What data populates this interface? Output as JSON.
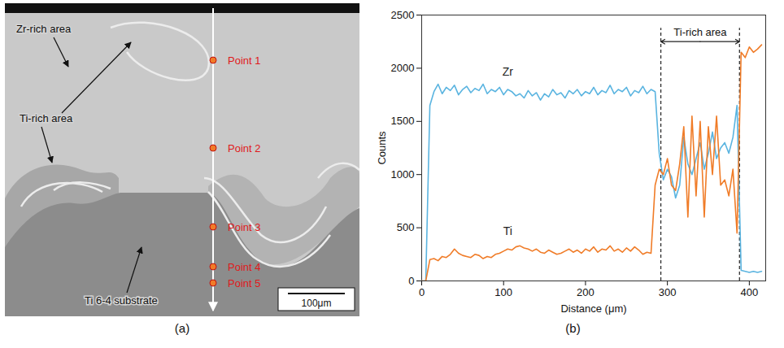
{
  "micrograph": {
    "panel_label": "(a)",
    "labels": {
      "zr_rich": "Zr-rich area",
      "ti_rich": "Ti-rich area",
      "substrate": "Ti 6-4 substrate"
    },
    "points": [
      "Point 1",
      "Point 2",
      "Point 3",
      "Point 4",
      "Point 5"
    ],
    "scale_bar": "100μm"
  },
  "chart_data": {
    "type": "line",
    "panel_label": "(b)",
    "x_label": "Distance (μm)",
    "y_label": "Counts",
    "x": [
      0,
      5,
      10,
      15,
      20,
      25,
      30,
      35,
      40,
      45,
      50,
      55,
      60,
      65,
      70,
      75,
      80,
      85,
      90,
      95,
      100,
      105,
      110,
      115,
      120,
      125,
      130,
      135,
      140,
      145,
      150,
      155,
      160,
      165,
      170,
      175,
      180,
      185,
      190,
      195,
      200,
      205,
      210,
      215,
      220,
      225,
      230,
      235,
      240,
      245,
      250,
      255,
      260,
      265,
      270,
      275,
      280,
      285,
      290,
      295,
      300,
      305,
      310,
      315,
      320,
      325,
      330,
      335,
      340,
      345,
      350,
      355,
      360,
      365,
      370,
      375,
      380,
      385,
      390,
      395,
      400,
      405,
      410,
      415
    ],
    "series": [
      {
        "name": "Zr",
        "color": "#5ab4e0",
        "values": [
          0,
          0,
          1650,
          1780,
          1850,
          1760,
          1820,
          1790,
          1840,
          1750,
          1800,
          1830,
          1770,
          1810,
          1790,
          1850,
          1760,
          1800,
          1780,
          1820,
          1750,
          1800,
          1780,
          1740,
          1760,
          1720,
          1790,
          1740,
          1770,
          1700,
          1760,
          1730,
          1800,
          1750,
          1770,
          1720,
          1790,
          1760,
          1800,
          1740,
          1780,
          1760,
          1820,
          1750,
          1790,
          1770,
          1840,
          1760,
          1800,
          1780,
          1820,
          1740,
          1790,
          1770,
          1830,
          1760,
          1800,
          1780,
          1200,
          950,
          1050,
          980,
          780,
          900,
          1350,
          1100,
          1000,
          1150,
          1300,
          1050,
          1200,
          1400,
          1150,
          1250,
          1300,
          1200,
          1350,
          1650,
          100,
          90,
          80,
          90,
          80,
          90
        ]
      },
      {
        "name": "Ti",
        "color": "#f07c28",
        "values": [
          0,
          0,
          200,
          210,
          190,
          230,
          220,
          250,
          300,
          260,
          240,
          230,
          220,
          250,
          240,
          210,
          230,
          220,
          250,
          260,
          280,
          300,
          290,
          320,
          330,
          310,
          300,
          280,
          300,
          270,
          260,
          290,
          270,
          250,
          260,
          280,
          300,
          270,
          290,
          260,
          300,
          280,
          320,
          270,
          300,
          290,
          330,
          280,
          300,
          270,
          310,
          280,
          320,
          290,
          250,
          270,
          260,
          900,
          1050,
          1000,
          1150,
          900,
          850,
          1100,
          1450,
          600,
          1550,
          800,
          1500,
          600,
          1450,
          1000,
          1550,
          900,
          950,
          800,
          1050,
          450,
          2150,
          2100,
          2200,
          2150,
          2180,
          2220
        ]
      }
    ],
    "xlim": [
      0,
      420
    ],
    "xticks": [
      0,
      100,
      200,
      300,
      400
    ],
    "ylim": [
      0,
      2500
    ],
    "yticks": [
      0,
      500,
      1000,
      1500,
      2000,
      2500
    ],
    "grid": false,
    "annotations": [
      {
        "text": "Ti-rich area",
        "x_start": 292,
        "x_end": 388
      }
    ]
  }
}
